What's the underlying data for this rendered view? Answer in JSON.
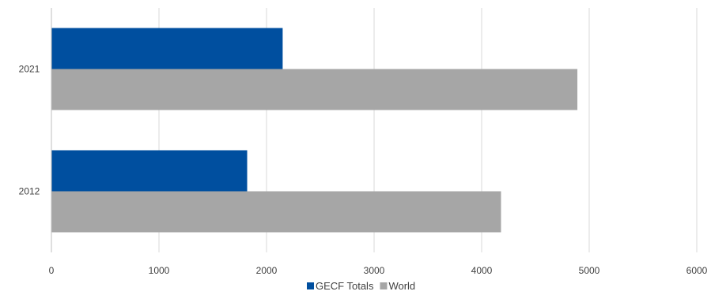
{
  "chart_data": {
    "type": "bar",
    "orientation": "horizontal",
    "categories": [
      "2012",
      "2021"
    ],
    "series": [
      {
        "name": "GECF Totals",
        "values": [
          1820,
          2150
        ],
        "color": "#004f9f"
      },
      {
        "name": "World",
        "values": [
          4180,
          4890
        ],
        "color": "#a6a6a6"
      }
    ],
    "title": "",
    "xlabel": "",
    "ylabel": "",
    "xlim": [
      0,
      6000
    ],
    "xticks": [
      "0",
      "1000",
      "2000",
      "3000",
      "4000",
      "5000",
      "6000"
    ],
    "grid": "vertical",
    "legend": "bottom-center"
  }
}
